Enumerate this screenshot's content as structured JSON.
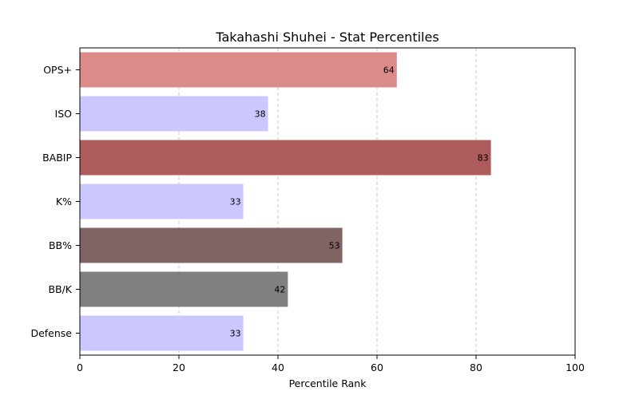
{
  "chart_data": {
    "type": "bar",
    "orientation": "horizontal",
    "title": "Takahashi Shuhei - Stat Percentiles",
    "xlabel": "Percentile Rank",
    "ylabel": "",
    "xlim": [
      0,
      100
    ],
    "xticks": [
      0,
      20,
      40,
      60,
      80,
      100
    ],
    "grid": "x-dashed",
    "categories": [
      "OPS+",
      "ISO",
      "BABIP",
      "K%",
      "BB%",
      "BB/K",
      "Defense"
    ],
    "values": [
      64,
      38,
      83,
      33,
      53,
      42,
      33
    ],
    "colors": [
      "#dc8a8a",
      "#cbc8ff",
      "#ae5b5b",
      "#cbc8ff",
      "#806464",
      "#808080",
      "#cbc8ff"
    ]
  }
}
